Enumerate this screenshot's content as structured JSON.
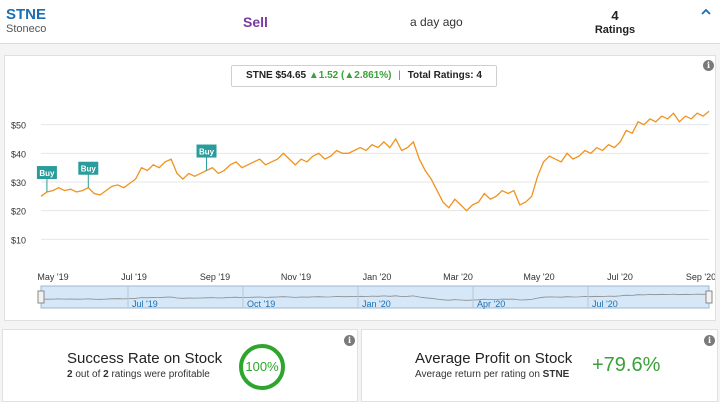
{
  "header": {
    "ticker": "STNE",
    "company": "Stoneco",
    "rating": "Sell",
    "time": "a day ago",
    "ratings_count": "4",
    "ratings_label": "Ratings"
  },
  "quote": {
    "symbol": "STNE",
    "price": "$54.65",
    "change": "▲1.52",
    "change_pct": "(▲2.861%)",
    "separator": "|",
    "total_label": "Total Ratings: 4"
  },
  "colors": {
    "line": "#f0921e",
    "buy": "#2a9c9c",
    "accent": "#1a6fb3",
    "success": "#2ea62e"
  },
  "chart_data": {
    "type": "line",
    "x_ticks": [
      "May '19",
      "Jul '19",
      "Sep '19",
      "Nov '19",
      "Jan '20",
      "Mar '20",
      "May '20",
      "Jul '20",
      "Sep '20"
    ],
    "y_ticks": [
      "$10",
      "$20",
      "$30",
      "$40",
      "$50"
    ],
    "ylim": [
      0,
      60
    ],
    "series": [
      {
        "values": [
          25,
          26.5,
          27,
          28,
          27,
          27.5,
          26.5,
          27,
          28,
          26,
          25.5,
          27,
          28.5,
          29,
          28,
          29.5,
          31,
          35,
          34,
          36,
          35,
          37,
          38,
          33,
          31,
          33,
          32,
          33,
          34,
          35,
          33,
          34,
          36,
          37,
          35,
          36,
          37,
          38,
          36,
          37,
          38,
          40,
          38,
          36,
          38,
          37,
          39,
          40,
          38,
          39,
          41,
          40,
          40,
          41,
          42,
          41,
          43,
          42,
          44,
          42,
          45,
          41,
          42,
          44,
          38,
          34,
          31,
          27,
          23,
          21,
          24,
          22,
          20,
          22,
          23,
          26,
          24,
          25,
          27,
          26,
          27,
          22,
          23,
          25,
          32,
          37,
          39,
          38,
          37,
          40,
          38,
          39,
          41,
          40,
          42,
          41,
          43,
          42,
          44,
          48,
          47,
          51,
          50,
          52,
          51,
          53,
          52,
          54,
          51,
          53,
          52,
          54,
          53,
          54.65
        ]
      }
    ],
    "annotations": [
      {
        "label": "Buy",
        "index": 1
      },
      {
        "label": "Buy",
        "index": 8
      },
      {
        "label": "Buy",
        "index": 28
      }
    ],
    "navigator": {
      "ticks": [
        "Jul '19",
        "Oct '19",
        "Jan '20",
        "Apr '20",
        "Jul '20"
      ]
    },
    "grid": true
  },
  "success": {
    "title": "Success Rate on Stock",
    "sub_count": "2",
    "sub_mid": " out of ",
    "sub_total": "2",
    "sub_tail": " ratings were profitable",
    "value": "100%"
  },
  "profit": {
    "title": "Average Profit on Stock",
    "sub_text": "Average return per rating on ",
    "sub_ticker": "STNE",
    "value": "+79.6%"
  },
  "info_glyph": "i"
}
